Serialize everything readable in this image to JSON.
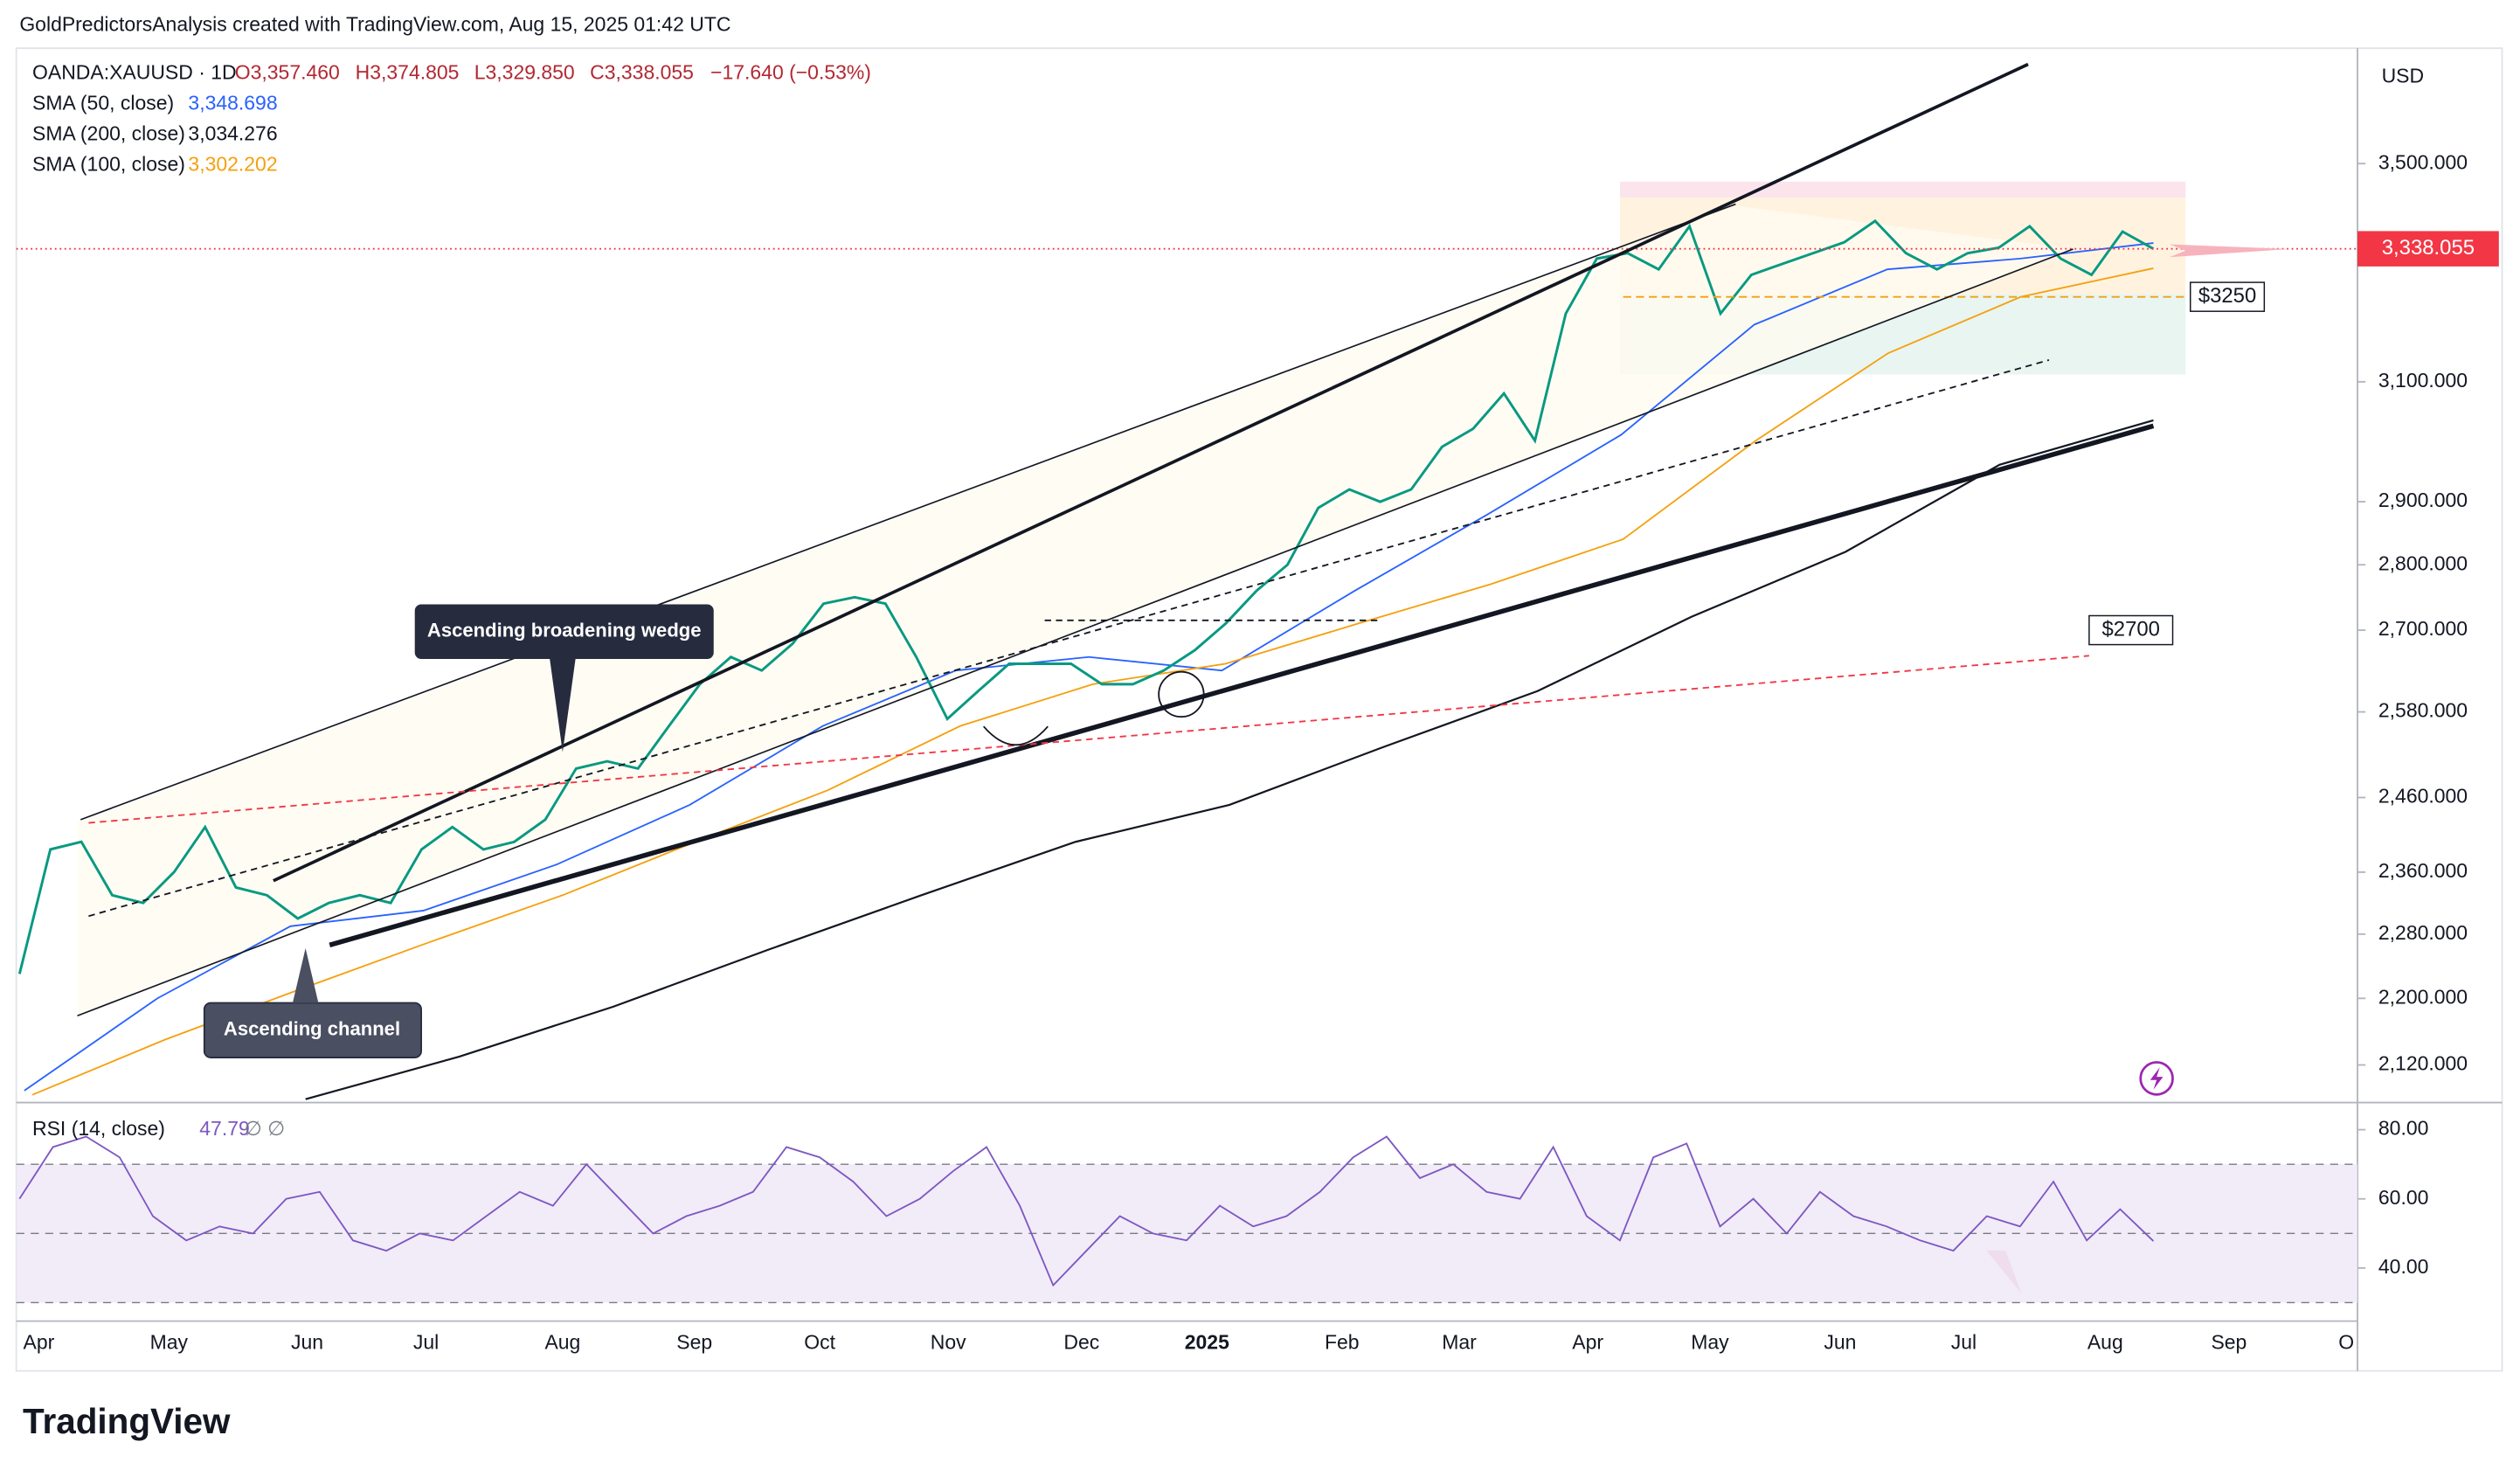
{
  "chart_data": {
    "type": "line",
    "attribution": "GoldPredictorsAnalysis created with TradingView.com, Aug 15, 2025 01:42 UTC",
    "title": "OANDA:XAUUSD · 1D",
    "quote_labels": [
      "O3,357.460",
      "H3,374.805",
      "L3,329.850",
      "C3,338.055",
      "−17.640 (−0.53%)"
    ],
    "currency": "USD",
    "log_scale": true,
    "ylim": [
      2078,
      3732
    ],
    "yticks": [
      {
        "value": 3500,
        "label": "3,500.000"
      },
      {
        "value": 3100,
        "label": "3,100.000"
      },
      {
        "value": 2900,
        "label": "2,900.000"
      },
      {
        "value": 2800,
        "label": "2,800.000"
      },
      {
        "value": 2700,
        "label": "2,700.000"
      },
      {
        "value": 2580,
        "label": "2,580.000"
      },
      {
        "value": 2460,
        "label": "2,460.000"
      },
      {
        "value": 2360,
        "label": "2,360.000"
      },
      {
        "value": 2280,
        "label": "2,280.000"
      },
      {
        "value": 2200,
        "label": "2,200.000"
      },
      {
        "value": 2120,
        "label": "2,120.000"
      }
    ],
    "x_labels": [
      "Apr",
      "May",
      "Jun",
      "Jul",
      "Aug",
      "Sep",
      "Oct",
      "Nov",
      "Dec",
      "2025",
      "Feb",
      "Mar",
      "Apr",
      "May",
      "Jun",
      "Jul",
      "Aug",
      "Sep",
      "O"
    ],
    "series": [
      {
        "name": "XAUUSD",
        "color": "#089981",
        "last_label": "3,338.055",
        "values": [
          2230,
          2390,
          2400,
          2330,
          2320,
          2360,
          2420,
          2340,
          2330,
          2300,
          2320,
          2330,
          2320,
          2390,
          2420,
          2390,
          2400,
          2430,
          2500,
          2510,
          2500,
          2560,
          2620,
          2660,
          2640,
          2680,
          2740,
          2750,
          2740,
          2660,
          2570,
          2610,
          2650,
          2650,
          2650,
          2620,
          2620,
          2640,
          2670,
          2710,
          2760,
          2800,
          2890,
          2920,
          2900,
          2920,
          2990,
          3020,
          3080,
          3000,
          3220,
          3320,
          3330,
          3300,
          3380,
          3220,
          3290,
          3310,
          3330,
          3350,
          3390,
          3330,
          3300,
          3330,
          3340,
          3380,
          3320,
          3290,
          3370,
          3338.055
        ]
      }
    ],
    "indicators": [
      {
        "name": "SMA (50, close)",
        "color": "#2962ff",
        "value_label": "3,348.698",
        "values": [
          2090,
          2200,
          2290,
          2310,
          2370,
          2450,
          2560,
          2640,
          2660,
          2640,
          2760,
          2880,
          3010,
          3200,
          3300,
          3320,
          3348.698
        ]
      },
      {
        "name": "SMA (200, close)",
        "color": "#131722",
        "value_label": "3,034.276",
        "values": [
          2080,
          2130,
          2190,
          2260,
          2330,
          2400,
          2450,
          2530,
          2610,
          2720,
          2820,
          2960,
          3034.276
        ]
      },
      {
        "name": "SMA (100, close)",
        "color": "#f5a00f",
        "value_label": "3,302.202",
        "values": [
          2085,
          2150,
          2210,
          2270,
          2330,
          2400,
          2470,
          2560,
          2620,
          2650,
          2710,
          2770,
          2840,
          3000,
          3150,
          3250,
          3302.202
        ]
      }
    ],
    "levels": [
      {
        "label": "$3250",
        "value": 3250,
        "color": "#f5a00f"
      },
      {
        "label": "$2700",
        "value": 2700,
        "color": "#f23645"
      }
    ],
    "annotations": [
      "Ascending broadening wedge",
      "Ascending channel"
    ],
    "rsi": {
      "name": "RSI (14, close)",
      "value_label": "47.79",
      "extra": "∅ ∅",
      "color": "#7e57c2",
      "ylim": [
        27.9,
        86
      ],
      "yticks": [
        {
          "value": 80,
          "label": "80.00"
        },
        {
          "value": 60,
          "label": "60.00"
        },
        {
          "value": 40,
          "label": "40.00"
        }
      ],
      "levels": [
        70,
        50,
        30
      ],
      "values": [
        60,
        75,
        78,
        72,
        55,
        48,
        52,
        50,
        60,
        62,
        48,
        45,
        50,
        48,
        55,
        62,
        58,
        70,
        60,
        50,
        55,
        58,
        62,
        75,
        72,
        65,
        55,
        60,
        68,
        75,
        58,
        35,
        45,
        55,
        50,
        48,
        58,
        52,
        55,
        62,
        72,
        78,
        66,
        70,
        62,
        60,
        75,
        55,
        48,
        72,
        76,
        52,
        60,
        50,
        62,
        55,
        52,
        48,
        45,
        55,
        52,
        65,
        48,
        57,
        47.79
      ]
    },
    "brand": "TradingView"
  }
}
